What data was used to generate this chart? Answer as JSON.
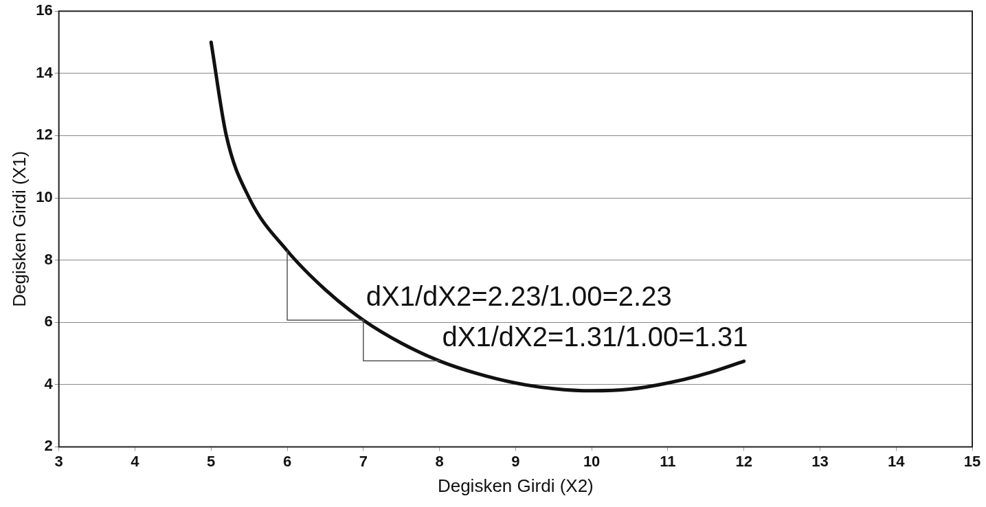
{
  "chart_data": {
    "type": "line",
    "xlabel": "Degisken Girdi (X2)",
    "ylabel": "Degisken Girdi (X1)",
    "xlim": [
      3,
      15
    ],
    "xticks": [
      3,
      4,
      5,
      6,
      7,
      8,
      9,
      10,
      11,
      12,
      13,
      14,
      15
    ],
    "ylim": [
      2,
      16
    ],
    "yticks": [
      2,
      4,
      6,
      8,
      10,
      12,
      14,
      16
    ],
    "grid": "y",
    "legend": false,
    "marker": "none",
    "series": [
      {
        "type": "line",
        "color": "#111111",
        "x": [
          5,
          5.2,
          5.5,
          6,
          6.5,
          7,
          7.5,
          8,
          8.5,
          9,
          9.5,
          10,
          10.5,
          11,
          11.5,
          12
        ],
        "values": [
          15,
          12,
          10,
          8.3,
          7.05,
          6.07,
          5.33,
          4.76,
          4.35,
          4.05,
          3.87,
          3.8,
          3.85,
          4.05,
          4.35,
          4.75
        ]
      },
      {
        "type": "line",
        "color": "#555555",
        "x": [
          6,
          6,
          7
        ],
        "values": [
          8.3,
          6.07,
          6.07
        ]
      },
      {
        "type": "line",
        "color": "#555555",
        "x": [
          7,
          7,
          8
        ],
        "values": [
          6.07,
          4.76,
          4.76
        ]
      }
    ],
    "annotations": [
      "dX1/dX2=2.23/1.00=2.23",
      "dX1/dX2=1.31/1.00=1.31"
    ]
  }
}
